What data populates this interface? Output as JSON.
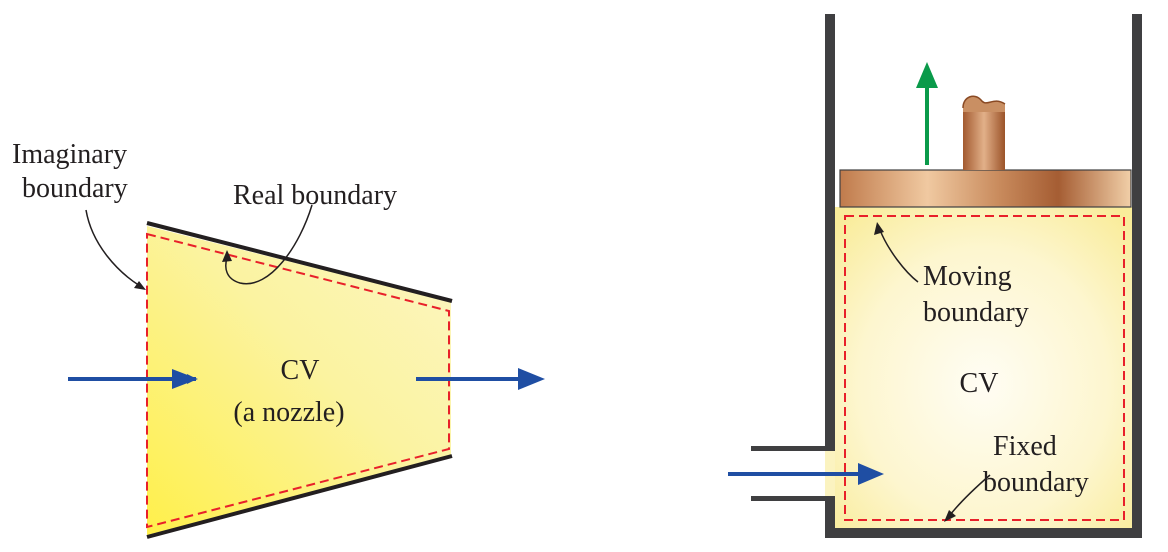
{
  "left_figure": {
    "imaginary_boundary_label": [
      "Imaginary",
      "boundary"
    ],
    "real_boundary_label": "Real boundary",
    "cv_label": "CV",
    "cv_sublabel": "(a nozzle)"
  },
  "right_figure": {
    "moving_boundary_label": [
      "Moving",
      "boundary"
    ],
    "cv_label": "CV",
    "fixed_boundary_label": [
      "Fixed",
      "boundary"
    ]
  },
  "colors": {
    "fluid_fill": "#fbf18a",
    "boundary_dash": "#e8202a",
    "flow_arrow": "#1f4ea3",
    "motion_arrow": "#0a9a4a",
    "wall": "#3f3f41",
    "piston": "#c8875a"
  }
}
